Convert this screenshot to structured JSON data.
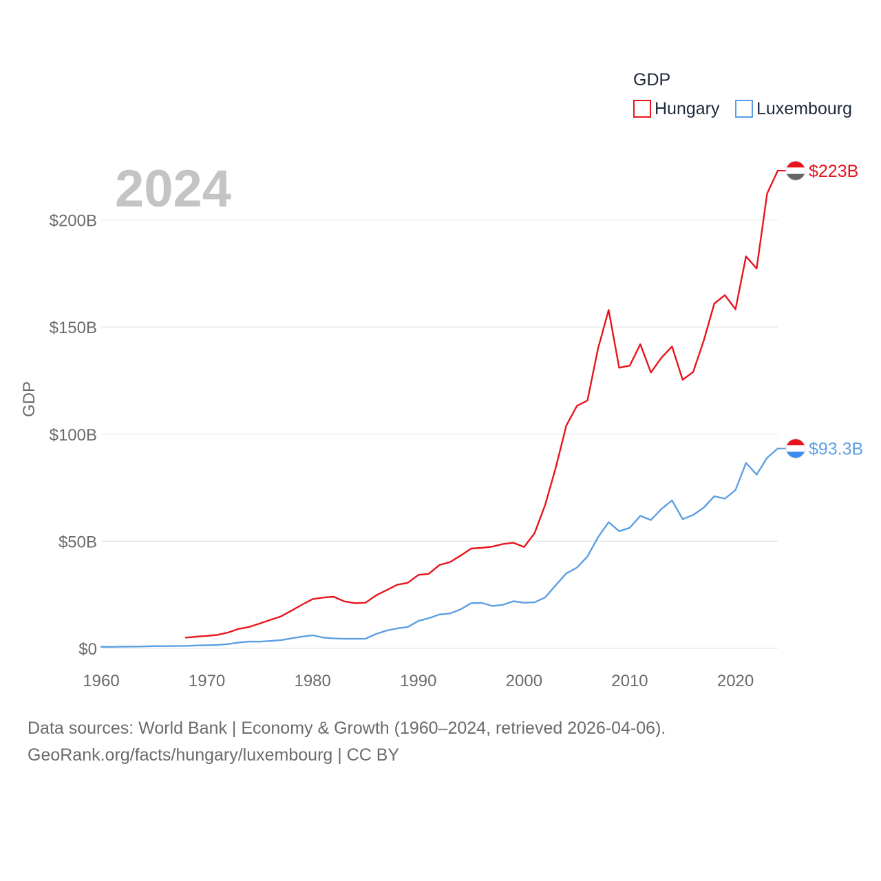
{
  "chart_data": {
    "type": "line",
    "year_label": "2024",
    "ylabel": "GDP",
    "legend_title": "GDP",
    "legend_position": "top-right",
    "x_ticks": [
      "1960",
      "1970",
      "1980",
      "1990",
      "2000",
      "2010",
      "2020"
    ],
    "y_ticks": [
      "$0",
      "$50B",
      "$100B",
      "$150B",
      "$200B"
    ],
    "y_tick_values": [
      0,
      50,
      100,
      150,
      200
    ],
    "xlim": [
      1960,
      2024
    ],
    "ylim": [
      0,
      223
    ],
    "grid": true,
    "series": [
      {
        "name": "Hungary",
        "color": "#e8141b",
        "end_label": "$223B",
        "start_year": 1968,
        "values": [
          5.0,
          5.5,
          5.8,
          6.3,
          7.4,
          9.1,
          10.0,
          11.6,
          13.3,
          14.9,
          17.6,
          20.4,
          23.0,
          23.7,
          24.1,
          21.9,
          21.1,
          21.3,
          24.7,
          27.2,
          29.7,
          30.6,
          34.3,
          34.8,
          38.9,
          40.3,
          43.3,
          46.6,
          46.9,
          47.5,
          48.7,
          49.3,
          47.3,
          53.8,
          67.0,
          84.4,
          104.0,
          113.2,
          115.7,
          140.0,
          158.0,
          131.0,
          132.0,
          142.0,
          128.8,
          135.7,
          140.9,
          125.4,
          129.0,
          143.7,
          161.0,
          164.9,
          158.3,
          183.0,
          177.3,
          212.4,
          223.0
        ]
      },
      {
        "name": "Luxembourg",
        "color": "#5b9fe3",
        "end_label": "$93.3B",
        "start_year": 1960,
        "values": [
          0.7,
          0.72,
          0.76,
          0.83,
          0.91,
          1.03,
          1.05,
          1.08,
          1.17,
          1.35,
          1.46,
          1.57,
          1.99,
          2.7,
          3.18,
          3.15,
          3.48,
          3.83,
          4.68,
          5.49,
          6.12,
          5.05,
          4.63,
          4.47,
          4.47,
          4.49,
          6.73,
          8.29,
          9.33,
          10.0,
          12.8,
          14.1,
          15.8,
          16.3,
          18.2,
          21.1,
          21.2,
          19.8,
          20.3,
          22.0,
          21.3,
          21.5,
          23.8,
          29.5,
          35.0,
          37.7,
          42.9,
          51.9,
          58.9,
          54.7,
          56.3,
          61.9,
          59.9,
          65.1,
          69.1,
          60.3,
          62.3,
          65.7,
          71.0,
          69.9,
          73.9,
          86.6,
          81.1,
          89.0,
          93.3
        ]
      }
    ]
  },
  "flags": {
    "hungary": [
      "#e8141b",
      "#ffffff",
      "#666666"
    ],
    "luxembourg": [
      "#e8141b",
      "#ffffff",
      "#3b8cf0"
    ]
  },
  "sources": {
    "line1": "Data sources: World Bank | Economy & Growth (1960–2024, retrieved 2026-04-06).",
    "line2": "GeoRank.org/facts/hungary/luxembourg | CC BY"
  }
}
